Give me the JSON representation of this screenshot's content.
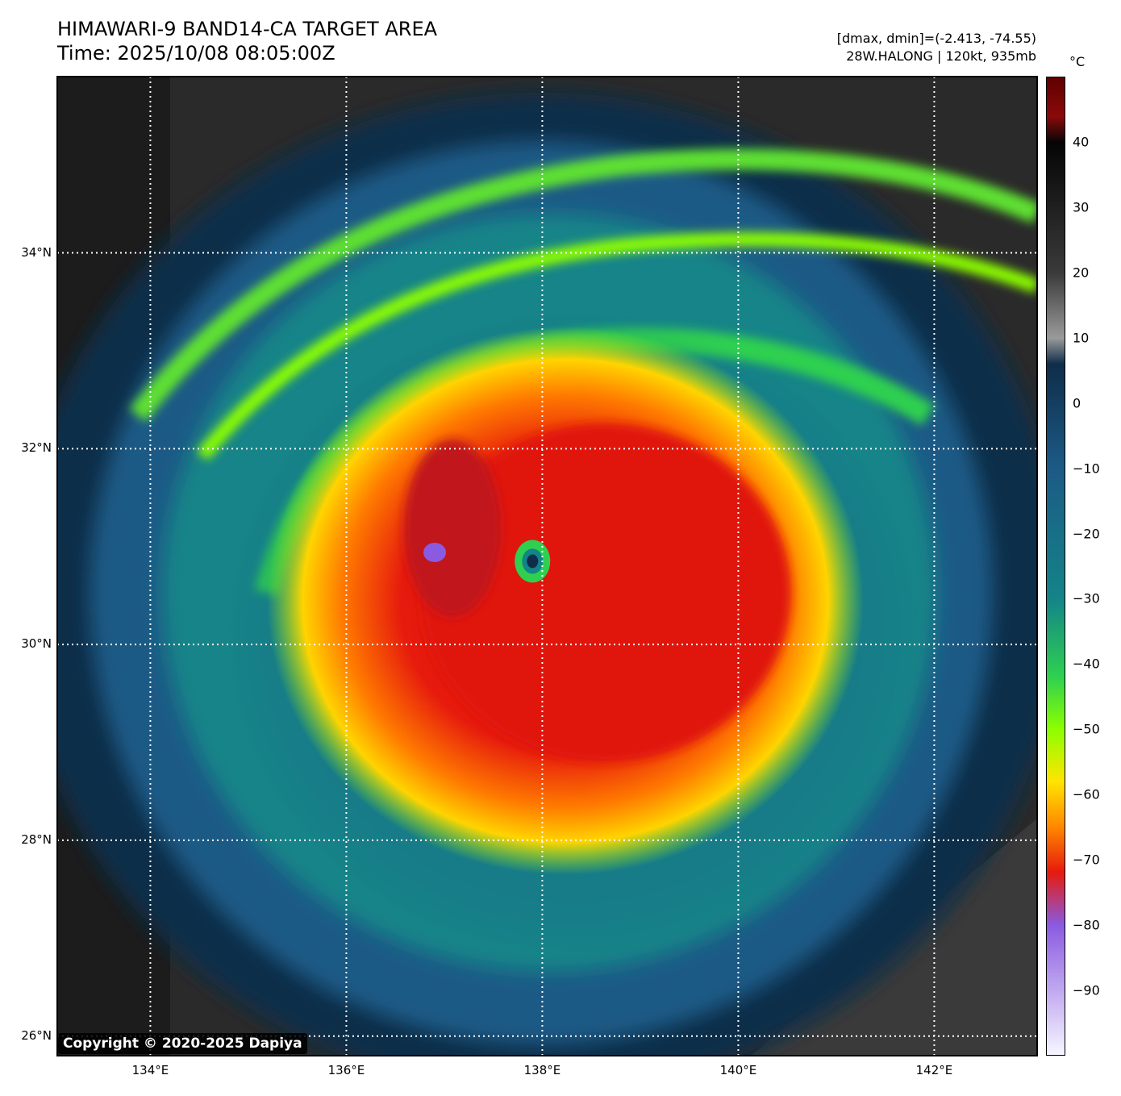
{
  "header": {
    "title": "HIMAWARI-9 BAND14-CA TARGET AREA",
    "time": "Time: 2025/10/08 08:05:00Z",
    "range": "[dmax, dmin]=(-2.413, -74.55)",
    "storm": "28W.HALONG | 120kt, 935mb"
  },
  "map": {
    "lon_range": [
      133.05,
      143.05
    ],
    "lat_range": [
      25.8,
      35.8
    ],
    "lat_ticks": [
      {
        "value": 26,
        "label": "26°N"
      },
      {
        "value": 28,
        "label": "28°N"
      },
      {
        "value": 30,
        "label": "30°N"
      },
      {
        "value": 32,
        "label": "32°N"
      },
      {
        "value": 34,
        "label": "34°N"
      }
    ],
    "lon_ticks": [
      {
        "value": 134,
        "label": "134°E"
      },
      {
        "value": 136,
        "label": "136°E"
      },
      {
        "value": 138,
        "label": "138°E"
      },
      {
        "value": 140,
        "label": "140°E"
      },
      {
        "value": 142,
        "label": "142°E"
      }
    ],
    "storm_center": {
      "lon": 137.9,
      "lat": 30.85
    }
  },
  "colorbar": {
    "unit": "°C",
    "min": -100,
    "max": 50,
    "ticks": [
      {
        "value": 40,
        "label": "40"
      },
      {
        "value": 30,
        "label": "30"
      },
      {
        "value": 20,
        "label": "20"
      },
      {
        "value": 10,
        "label": "10"
      },
      {
        "value": 0,
        "label": "0"
      },
      {
        "value": -10,
        "label": "−10"
      },
      {
        "value": -20,
        "label": "−20"
      },
      {
        "value": -30,
        "label": "−30"
      },
      {
        "value": -40,
        "label": "−40"
      },
      {
        "value": -50,
        "label": "−50"
      },
      {
        "value": -60,
        "label": "−60"
      },
      {
        "value": -70,
        "label": "−70"
      },
      {
        "value": -80,
        "label": "−80"
      },
      {
        "value": -90,
        "label": "−90"
      }
    ],
    "colors": {
      "top": "#5e0000",
      "dark_red": "#8b0a0a",
      "black": "#050505",
      "gray": "#9a9a9a",
      "navy": "#0f2d4a",
      "blue": "#1c5a86",
      "teal": "#138488",
      "green": "#2fd050",
      "lime": "#8cff00",
      "yellow": "#ffe500",
      "orange": "#ff8800",
      "red": "#e61a0d",
      "purple": "#8a5ae0",
      "pale": "#f6f6ff"
    }
  },
  "copyright": "Copyright © 2020-2025 Dapiya"
}
